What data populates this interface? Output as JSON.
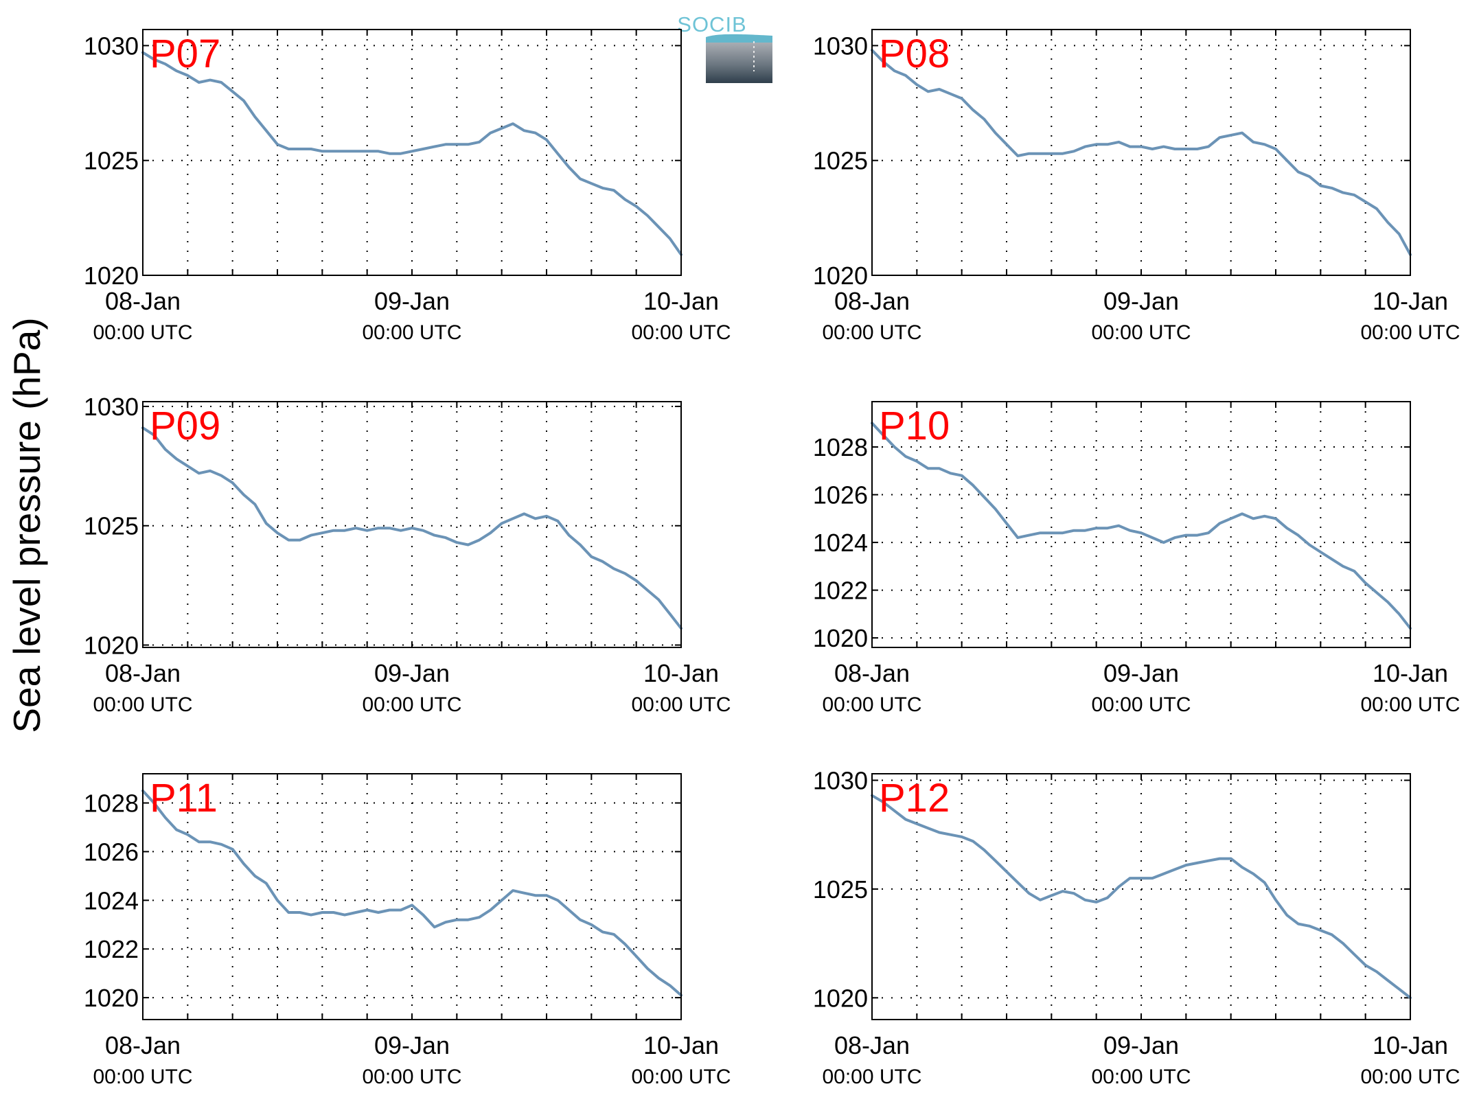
{
  "figure": {
    "ylabel": "Sea level pressure (hPa)",
    "logo": {
      "text": "SOCIB"
    },
    "line_color": "#6b93b6",
    "label_color": "#ff0000"
  },
  "chart_data": [
    {
      "type": "line",
      "name": "P07",
      "xlim": [
        0,
        48
      ],
      "x_ticks": [
        {
          "x": 0,
          "label": "08-Jan",
          "sub": "00:00 UTC"
        },
        {
          "x": 24,
          "label": "09-Jan",
          "sub": "00:00 UTC"
        },
        {
          "x": 48,
          "label": "10-Jan",
          "sub": "00:00 UTC"
        }
      ],
      "ylim": [
        1020,
        1030.7
      ],
      "yticks": [
        1020,
        1025,
        1030
      ],
      "grid": true,
      "x": [
        0,
        1,
        2,
        3,
        4,
        5,
        6,
        7,
        8,
        9,
        10,
        11,
        12,
        13,
        14,
        15,
        16,
        17,
        18,
        19,
        20,
        21,
        22,
        23,
        24,
        25,
        26,
        27,
        28,
        29,
        30,
        31,
        32,
        33,
        34,
        35,
        36,
        37,
        38,
        39,
        40,
        41,
        42,
        43,
        44,
        45,
        46,
        47,
        48
      ],
      "values": [
        1029.7,
        1029.4,
        1029.2,
        1028.9,
        1028.7,
        1028.4,
        1028.5,
        1028.4,
        1028.0,
        1027.6,
        1026.9,
        1026.3,
        1025.7,
        1025.5,
        1025.5,
        1025.5,
        1025.4,
        1025.4,
        1025.4,
        1025.4,
        1025.4,
        1025.4,
        1025.3,
        1025.3,
        1025.4,
        1025.5,
        1025.6,
        1025.7,
        1025.7,
        1025.7,
        1025.8,
        1026.2,
        1026.4,
        1026.6,
        1026.3,
        1026.2,
        1025.9,
        1025.3,
        1024.7,
        1024.2,
        1024.0,
        1023.8,
        1023.7,
        1023.3,
        1023.0,
        1022.6,
        1022.1,
        1021.6,
        1020.9
      ]
    },
    {
      "type": "line",
      "name": "P08",
      "xlim": [
        0,
        48
      ],
      "x_ticks": [
        {
          "x": 0,
          "label": "08-Jan",
          "sub": "00:00 UTC"
        },
        {
          "x": 24,
          "label": "09-Jan",
          "sub": "00:00 UTC"
        },
        {
          "x": 48,
          "label": "10-Jan",
          "sub": "00:00 UTC"
        }
      ],
      "ylim": [
        1020,
        1030.7
      ],
      "yticks": [
        1020,
        1025,
        1030
      ],
      "grid": true,
      "x": [
        0,
        1,
        2,
        3,
        4,
        5,
        6,
        7,
        8,
        9,
        10,
        11,
        12,
        13,
        14,
        15,
        16,
        17,
        18,
        19,
        20,
        21,
        22,
        23,
        24,
        25,
        26,
        27,
        28,
        29,
        30,
        31,
        32,
        33,
        34,
        35,
        36,
        37,
        38,
        39,
        40,
        41,
        42,
        43,
        44,
        45,
        46,
        47,
        48
      ],
      "values": [
        1029.8,
        1029.3,
        1028.9,
        1028.7,
        1028.3,
        1028.0,
        1028.1,
        1027.9,
        1027.7,
        1027.2,
        1026.8,
        1026.2,
        1025.7,
        1025.2,
        1025.3,
        1025.3,
        1025.3,
        1025.3,
        1025.4,
        1025.6,
        1025.7,
        1025.7,
        1025.8,
        1025.6,
        1025.6,
        1025.5,
        1025.6,
        1025.5,
        1025.5,
        1025.5,
        1025.6,
        1026.0,
        1026.1,
        1026.2,
        1025.8,
        1025.7,
        1025.5,
        1025.0,
        1024.5,
        1024.3,
        1023.9,
        1023.8,
        1023.6,
        1023.5,
        1023.2,
        1022.9,
        1022.3,
        1021.8,
        1020.9
      ]
    },
    {
      "type": "line",
      "name": "P09",
      "xlim": [
        0,
        48
      ],
      "x_ticks": [
        {
          "x": 0,
          "label": "08-Jan",
          "sub": "00:00 UTC"
        },
        {
          "x": 24,
          "label": "09-Jan",
          "sub": "00:00 UTC"
        },
        {
          "x": 48,
          "label": "10-Jan",
          "sub": "00:00 UTC"
        }
      ],
      "ylim": [
        1019.9,
        1030.2
      ],
      "yticks": [
        1020,
        1025,
        1030
      ],
      "grid": true,
      "x": [
        0,
        1,
        2,
        3,
        4,
        5,
        6,
        7,
        8,
        9,
        10,
        11,
        12,
        13,
        14,
        15,
        16,
        17,
        18,
        19,
        20,
        21,
        22,
        23,
        24,
        25,
        26,
        27,
        28,
        29,
        30,
        31,
        32,
        33,
        34,
        35,
        36,
        37,
        38,
        39,
        40,
        41,
        42,
        43,
        44,
        45,
        46,
        47,
        48
      ],
      "values": [
        1029.1,
        1028.8,
        1028.2,
        1027.8,
        1027.5,
        1027.2,
        1027.3,
        1027.1,
        1026.8,
        1026.3,
        1025.9,
        1025.1,
        1024.7,
        1024.4,
        1024.4,
        1024.6,
        1024.7,
        1024.8,
        1024.8,
        1024.9,
        1024.8,
        1024.9,
        1024.9,
        1024.8,
        1024.9,
        1024.8,
        1024.6,
        1024.5,
        1024.3,
        1024.2,
        1024.4,
        1024.7,
        1025.1,
        1025.3,
        1025.5,
        1025.3,
        1025.4,
        1025.2,
        1024.6,
        1024.2,
        1023.7,
        1023.5,
        1023.2,
        1023.0,
        1022.7,
        1022.3,
        1021.9,
        1021.3,
        1020.7
      ]
    },
    {
      "type": "line",
      "name": "P10",
      "xlim": [
        0,
        48
      ],
      "x_ticks": [
        {
          "x": 0,
          "label": "08-Jan",
          "sub": "00:00 UTC"
        },
        {
          "x": 24,
          "label": "09-Jan",
          "sub": "00:00 UTC"
        },
        {
          "x": 48,
          "label": "10-Jan",
          "sub": "00:00 UTC"
        }
      ],
      "ylim": [
        1019.6,
        1029.9
      ],
      "yticks": [
        1020,
        1022,
        1024,
        1026,
        1028
      ],
      "grid": true,
      "x": [
        0,
        1,
        2,
        3,
        4,
        5,
        6,
        7,
        8,
        9,
        10,
        11,
        12,
        13,
        14,
        15,
        16,
        17,
        18,
        19,
        20,
        21,
        22,
        23,
        24,
        25,
        26,
        27,
        28,
        29,
        30,
        31,
        32,
        33,
        34,
        35,
        36,
        37,
        38,
        39,
        40,
        41,
        42,
        43,
        44,
        45,
        46,
        47,
        48
      ],
      "values": [
        1029.0,
        1028.5,
        1028.0,
        1027.6,
        1027.4,
        1027.1,
        1027.1,
        1026.9,
        1026.8,
        1026.4,
        1025.9,
        1025.4,
        1024.8,
        1024.2,
        1024.3,
        1024.4,
        1024.4,
        1024.4,
        1024.5,
        1024.5,
        1024.6,
        1024.6,
        1024.7,
        1024.5,
        1024.4,
        1024.2,
        1024.0,
        1024.2,
        1024.3,
        1024.3,
        1024.4,
        1024.8,
        1025.0,
        1025.2,
        1025.0,
        1025.1,
        1025.0,
        1024.6,
        1024.3,
        1023.9,
        1023.6,
        1023.3,
        1023.0,
        1022.8,
        1022.3,
        1021.9,
        1021.5,
        1021.0,
        1020.4
      ]
    },
    {
      "type": "line",
      "name": "P11",
      "xlim": [
        0,
        48
      ],
      "x_ticks": [
        {
          "x": 0,
          "label": "08-Jan",
          "sub": "00:00 UTC"
        },
        {
          "x": 24,
          "label": "09-Jan",
          "sub": "00:00 UTC"
        },
        {
          "x": 48,
          "label": "10-Jan",
          "sub": "00:00 UTC"
        }
      ],
      "ylim": [
        1019.1,
        1029.2
      ],
      "yticks": [
        1020,
        1022,
        1024,
        1026,
        1028
      ],
      "grid": true,
      "x": [
        0,
        1,
        2,
        3,
        4,
        5,
        6,
        7,
        8,
        9,
        10,
        11,
        12,
        13,
        14,
        15,
        16,
        17,
        18,
        19,
        20,
        21,
        22,
        23,
        24,
        25,
        26,
        27,
        28,
        29,
        30,
        31,
        32,
        33,
        34,
        35,
        36,
        37,
        38,
        39,
        40,
        41,
        42,
        43,
        44,
        45,
        46,
        47,
        48
      ],
      "values": [
        1028.5,
        1028.0,
        1027.4,
        1026.9,
        1026.7,
        1026.4,
        1026.4,
        1026.3,
        1026.1,
        1025.5,
        1025.0,
        1024.7,
        1024.0,
        1023.5,
        1023.5,
        1023.4,
        1023.5,
        1023.5,
        1023.4,
        1023.5,
        1023.6,
        1023.5,
        1023.6,
        1023.6,
        1023.8,
        1023.4,
        1022.9,
        1023.1,
        1023.2,
        1023.2,
        1023.3,
        1023.6,
        1024.0,
        1024.4,
        1024.3,
        1024.2,
        1024.2,
        1024.0,
        1023.6,
        1023.2,
        1023.0,
        1022.7,
        1022.6,
        1022.2,
        1021.7,
        1021.2,
        1020.8,
        1020.5,
        1020.1
      ]
    },
    {
      "type": "line",
      "name": "P12",
      "xlim": [
        0,
        48
      ],
      "x_ticks": [
        {
          "x": 0,
          "label": "08-Jan",
          "sub": "00:00 UTC"
        },
        {
          "x": 24,
          "label": "09-Jan",
          "sub": "00:00 UTC"
        },
        {
          "x": 48,
          "label": "10-Jan",
          "sub": "00:00 UTC"
        }
      ],
      "ylim": [
        1019.0,
        1030.3
      ],
      "yticks": [
        1020,
        1025,
        1030
      ],
      "grid": true,
      "x": [
        0,
        1,
        2,
        3,
        4,
        5,
        6,
        7,
        8,
        9,
        10,
        11,
        12,
        13,
        14,
        15,
        16,
        17,
        18,
        19,
        20,
        21,
        22,
        23,
        24,
        25,
        26,
        27,
        28,
        29,
        30,
        31,
        32,
        33,
        34,
        35,
        36,
        37,
        38,
        39,
        40,
        41,
        42,
        43,
        44,
        45,
        46,
        47,
        48
      ],
      "values": [
        1029.3,
        1029.0,
        1028.6,
        1028.2,
        1028.0,
        1027.8,
        1027.6,
        1027.5,
        1027.4,
        1027.2,
        1026.8,
        1026.3,
        1025.8,
        1025.3,
        1024.8,
        1024.5,
        1024.7,
        1024.9,
        1024.8,
        1024.5,
        1024.4,
        1024.6,
        1025.1,
        1025.5,
        1025.5,
        1025.5,
        1025.7,
        1025.9,
        1026.1,
        1026.2,
        1026.3,
        1026.4,
        1026.4,
        1026.0,
        1025.7,
        1025.3,
        1024.5,
        1023.8,
        1023.4,
        1023.3,
        1023.1,
        1022.9,
        1022.5,
        1022.0,
        1021.5,
        1021.2,
        1020.8,
        1020.4,
        1020.0
      ]
    }
  ]
}
